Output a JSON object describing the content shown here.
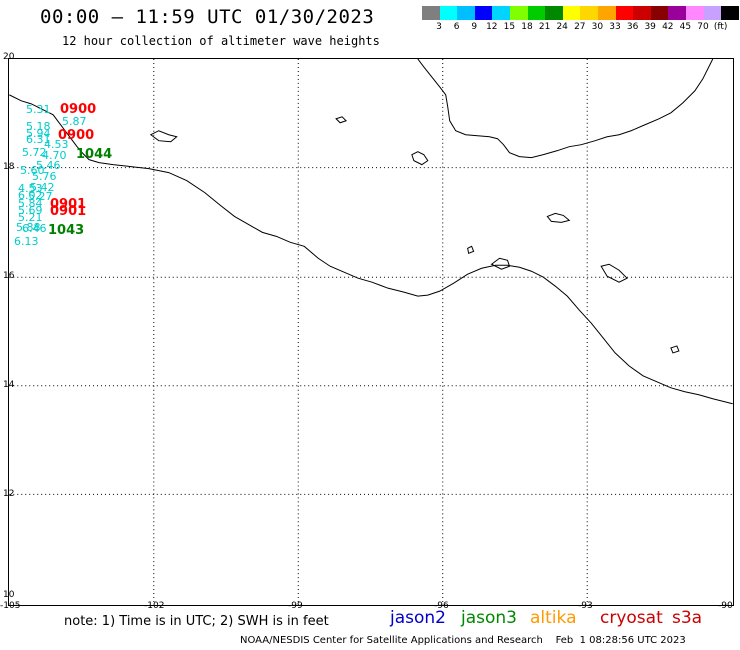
{
  "title": "00:00 — 11:59 UTC 01/30/2023",
  "subtitle": "12 hour collection of altimeter wave heights",
  "colorbar": {
    "colors": [
      "#7f7f7f",
      "#00ffff",
      "#00bfff",
      "#0000ff",
      "#00d4ff",
      "#7fff00",
      "#00cc00",
      "#008800",
      "#ffff00",
      "#ffd700",
      "#ffa500",
      "#ff0000",
      "#cc0000",
      "#880000",
      "#9a009a",
      "#ff88ff",
      "#c8a0ff",
      "#000000"
    ],
    "labels": [
      "3",
      "6",
      "9",
      "12",
      "15",
      "18",
      "21",
      "24",
      "27",
      "30",
      "33",
      "36",
      "39",
      "42",
      "45",
      "70",
      "(ft)"
    ]
  },
  "axes": {
    "lat_ticks": [
      "20",
      "18",
      "16",
      "14",
      "12",
      "10"
    ],
    "lon_ticks": [
      "-105",
      "-102",
      "-99",
      "-96",
      "-93",
      "-90"
    ]
  },
  "pass_times": [
    {
      "text": "0900",
      "color": "#ff0000"
    },
    {
      "text": "0900",
      "color": "#ff0000"
    },
    {
      "text": "1044",
      "color": "#008000"
    },
    {
      "text": "0901",
      "color": "#ff0000"
    },
    {
      "text": "0901",
      "color": "#ff0000"
    },
    {
      "text": "1043",
      "color": "#008000"
    }
  ],
  "observations": [
    "5.31",
    "5.18",
    "5.87",
    "5.94",
    "6.31",
    "4.53",
    "5.72",
    "4.70",
    "5.46",
    "5.60",
    "5.76",
    "4.53",
    "5.42",
    "6.02",
    "5.27",
    "5.84",
    "5.69",
    "5.21",
    "5.88",
    "6.46",
    "6.13"
  ],
  "obs_color": "#00cccc",
  "note": "note: 1) Time is in UTC; 2) SWH is in feet",
  "legend": [
    {
      "label": "jason2",
      "color": "#0000cc"
    },
    {
      "label": "jason3",
      "color": "#008800"
    },
    {
      "label": "altika",
      "color": "#ff9900"
    },
    {
      "label": "cryosat",
      "color": "#cc0000"
    },
    {
      "label": "s3a",
      "color": "#cc0000"
    }
  ],
  "credit": "NOAA/NESDIS Center for Satellite Applications and Research    Feb  1 08:28:56 UTC 2023"
}
